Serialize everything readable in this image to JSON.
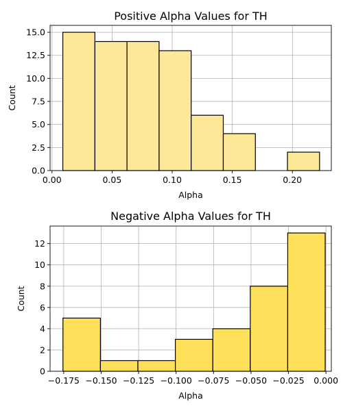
{
  "chart_data": [
    {
      "type": "bar",
      "title": "Positive Alpha Values for TH",
      "xlabel": "Alpha",
      "ylabel": "Count",
      "color": "#fde798",
      "edge_color": "#000000",
      "grid": true,
      "xlim": [
        -0.0016,
        0.2324
      ],
      "ylim": [
        0,
        15.75
      ],
      "xticks": [
        0.0,
        0.05,
        0.1,
        0.15,
        0.2
      ],
      "xtick_labels": [
        "0.00",
        "0.05",
        "0.10",
        "0.15",
        "0.20"
      ],
      "yticks": [
        0.0,
        2.5,
        5.0,
        7.5,
        10.0,
        12.5,
        15.0
      ],
      "ytick_labels": [
        "0.0",
        "2.5",
        "5.0",
        "7.5",
        "10.0",
        "12.5",
        "15.0"
      ],
      "bins": [
        {
          "x0": 0.009,
          "x1": 0.0357,
          "count": 15
        },
        {
          "x0": 0.0357,
          "x1": 0.0624,
          "count": 14
        },
        {
          "x0": 0.0624,
          "x1": 0.0891,
          "count": 14
        },
        {
          "x0": 0.0891,
          "x1": 0.1158,
          "count": 13
        },
        {
          "x0": 0.1158,
          "x1": 0.1425,
          "count": 6
        },
        {
          "x0": 0.1425,
          "x1": 0.1692,
          "count": 4
        },
        {
          "x0": 0.1692,
          "x1": 0.1959,
          "count": 0
        },
        {
          "x0": 0.1959,
          "x1": 0.2226,
          "count": 2
        }
      ]
    },
    {
      "type": "bar",
      "title": "Negative Alpha Values for TH",
      "xlabel": "Alpha",
      "ylabel": "Count",
      "color": "#fedf59",
      "edge_color": "#000000",
      "grid": true,
      "xlim": [
        -0.1841,
        0.0036
      ],
      "ylim": [
        0,
        13.65
      ],
      "xticks": [
        -0.175,
        -0.15,
        -0.125,
        -0.1,
        -0.075,
        -0.05,
        -0.025,
        0.0
      ],
      "xtick_labels": [
        "−0.175",
        "−0.150",
        "−0.125",
        "−0.100",
        "−0.075",
        "−0.050",
        "−0.025",
        "0.000"
      ],
      "yticks": [
        0,
        2,
        4,
        6,
        8,
        10,
        12
      ],
      "ytick_labels": [
        "0",
        "2",
        "4",
        "6",
        "8",
        "10",
        "12"
      ],
      "bins": [
        {
          "x0": -0.1755,
          "x1": -0.1505,
          "count": 5
        },
        {
          "x0": -0.1505,
          "x1": -0.1255,
          "count": 1
        },
        {
          "x0": -0.1255,
          "x1": -0.1005,
          "count": 1
        },
        {
          "x0": -0.1005,
          "x1": -0.0755,
          "count": 3
        },
        {
          "x0": -0.0755,
          "x1": -0.0505,
          "count": 4
        },
        {
          "x0": -0.0505,
          "x1": -0.0255,
          "count": 8
        },
        {
          "x0": -0.0255,
          "x1": -0.0005,
          "count": 13
        }
      ]
    }
  ]
}
